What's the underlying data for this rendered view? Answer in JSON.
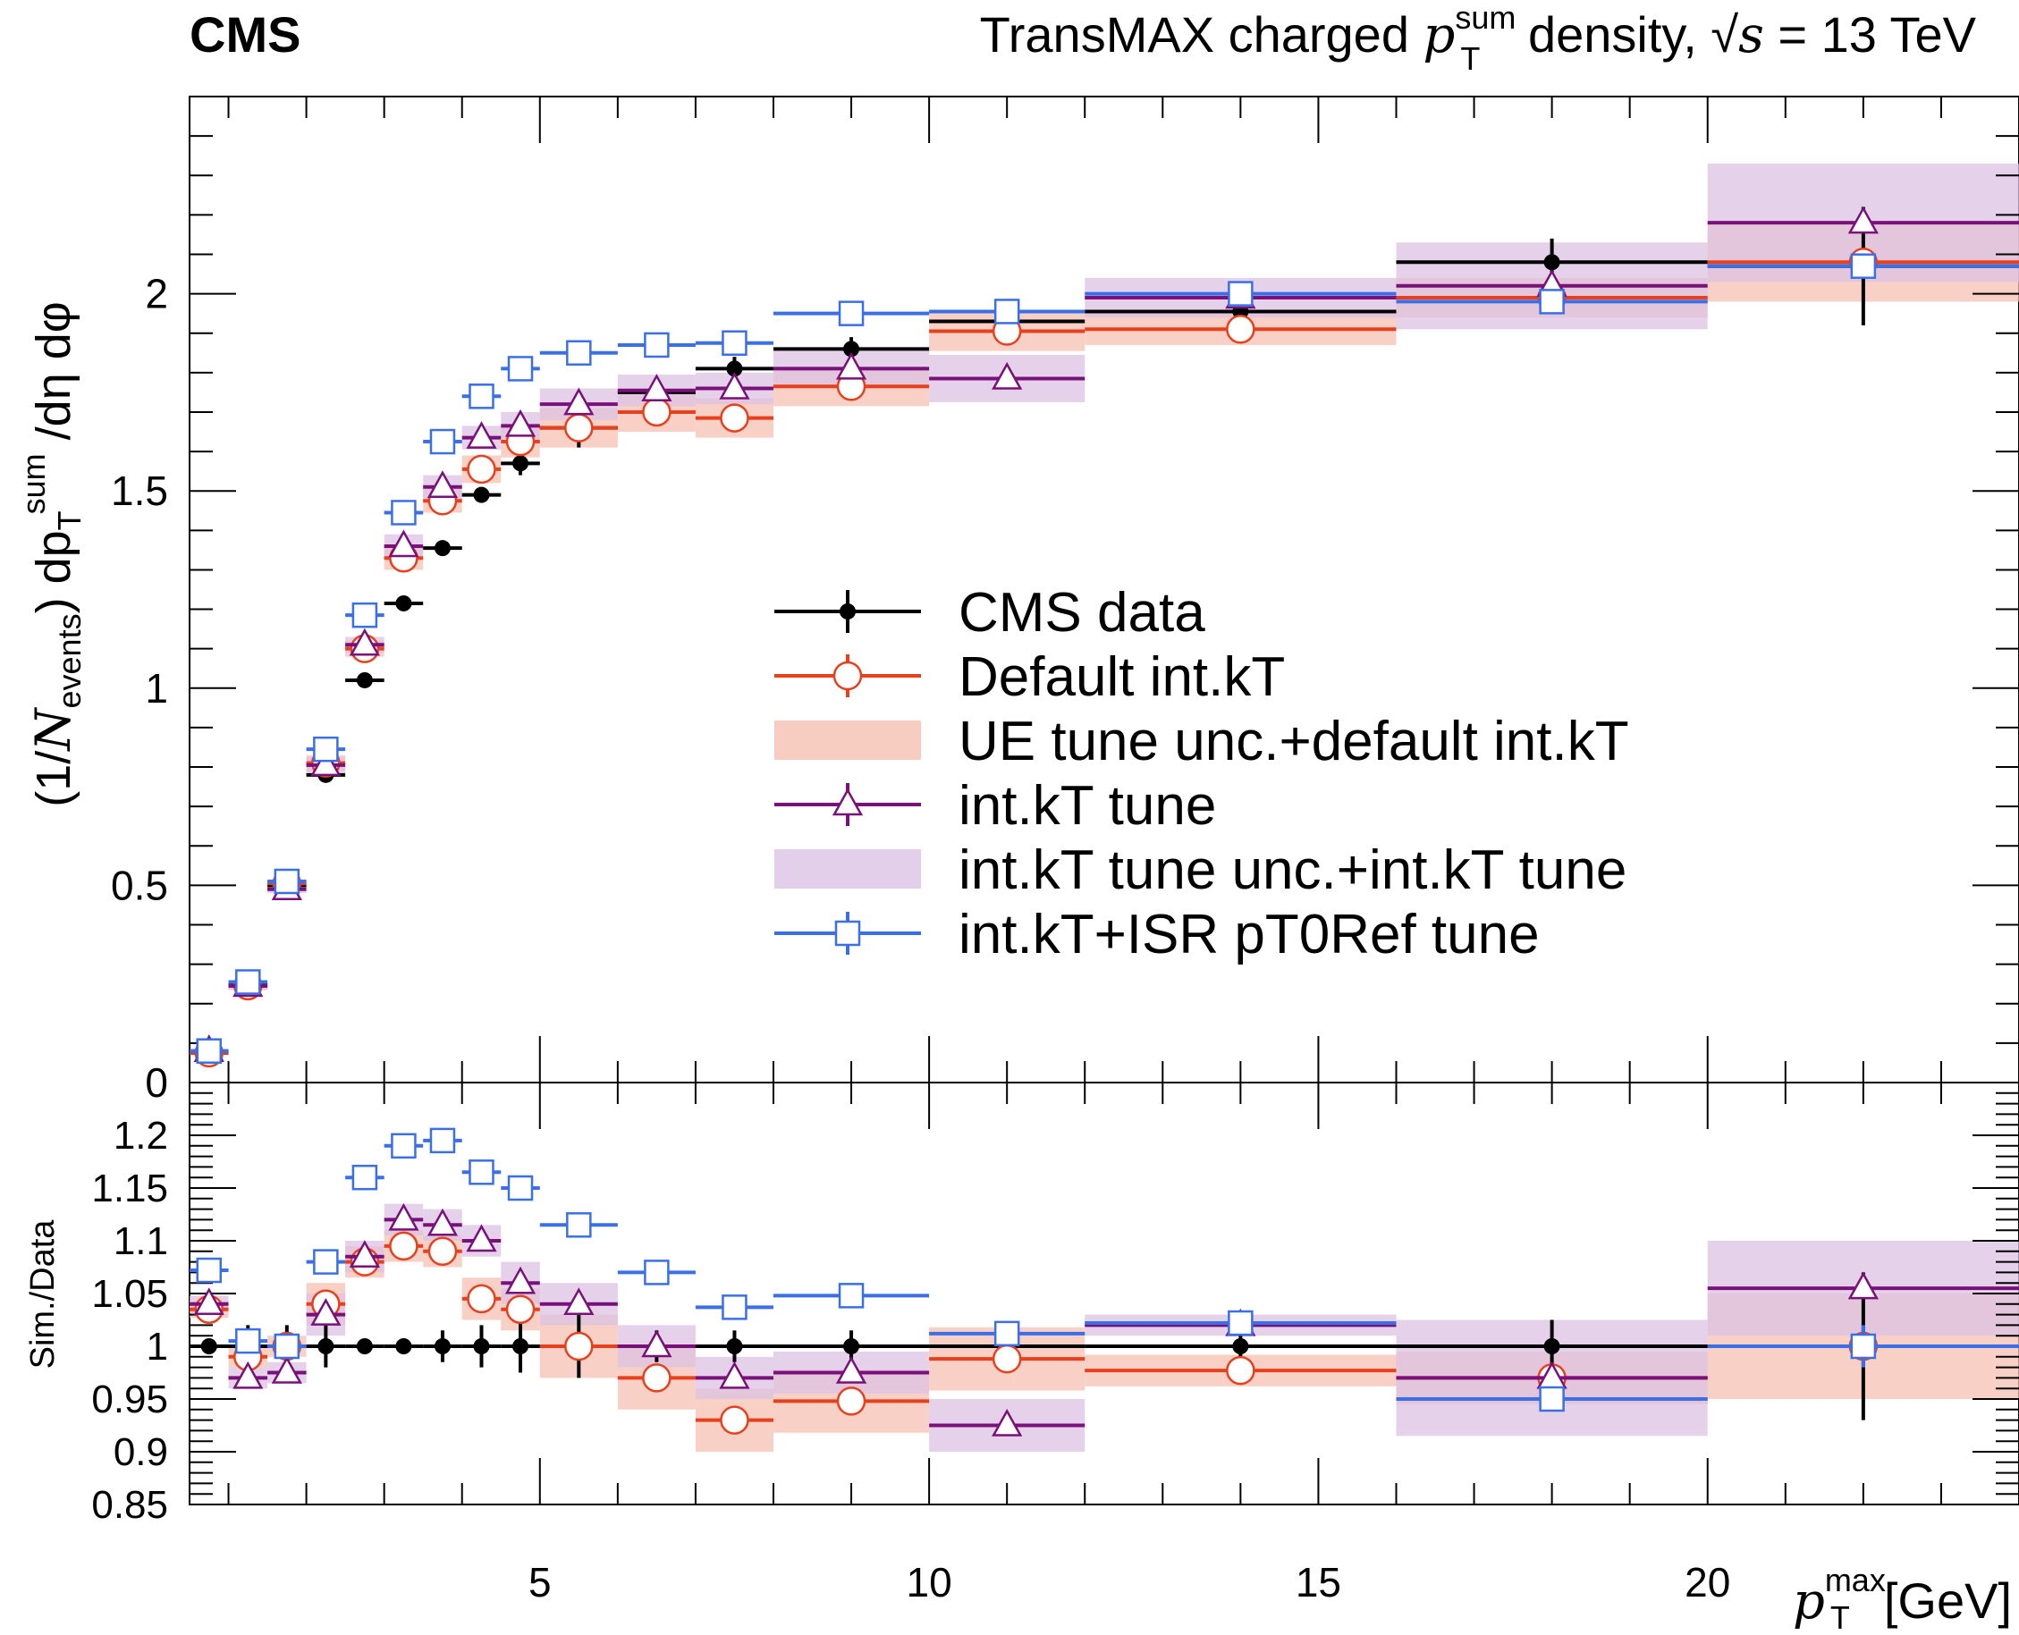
{
  "header": {
    "brand": "CMS",
    "title_main": "TransMAX charged ",
    "title_var": "p",
    "title_sub": "T",
    "title_sup": "sum",
    "title_rest": " density, ",
    "title_sqrt_s": "s",
    "title_energy": " = 13 TeV"
  },
  "axes": {
    "top_ylabel_prefix": "(1/",
    "top_ylabel_N": "N",
    "top_ylabel_events": "events",
    "top_ylabel_mid": ") dp",
    "top_ylabel_T": "T",
    "top_ylabel_sum": "sum",
    "top_ylabel_suffix": " /dη dφ",
    "bottom_ylabel": "Sim./Data",
    "xlabel_var": "p",
    "xlabel_sub": "T",
    "xlabel_sup": "max",
    "xlabel_unit": "[GeV]"
  },
  "colors": {
    "data": "#000000",
    "default": "#e8401c",
    "default_band": "#f5c0b2",
    "kt": "#7a107a",
    "kt_band": "#dcc3e3",
    "isr": "#3a6fe8"
  },
  "legend": {
    "placement": "center-right",
    "entries": [
      {
        "key": "data",
        "label": "CMS data"
      },
      {
        "key": "default",
        "label": "Default int.kT"
      },
      {
        "key": "default_band",
        "label": "UE tune unc.+default int.kT"
      },
      {
        "key": "kt",
        "label": "int.kT tune"
      },
      {
        "key": "kt_band",
        "label": "int.kT tune unc.+int.kT tune"
      },
      {
        "key": "isr",
        "label": "int.kT+ISR pT0Ref tune"
      }
    ]
  },
  "chart_data": [
    {
      "type": "scatter",
      "panel": "main",
      "xlim": [
        0.5,
        24
      ],
      "ylim": [
        0,
        2.5
      ],
      "yticks": [
        "0",
        "0.5",
        "1",
        "1.5",
        "2"
      ],
      "xticks": [
        "5",
        "10",
        "15",
        "20"
      ],
      "bins": [
        [
          0.5,
          1
        ],
        [
          1,
          1.5
        ],
        [
          1.5,
          2
        ],
        [
          2,
          2.5
        ],
        [
          2.5,
          3
        ],
        [
          3,
          3.5
        ],
        [
          3.5,
          4
        ],
        [
          4,
          4.5
        ],
        [
          4.5,
          5
        ],
        [
          5,
          6
        ],
        [
          6,
          7
        ],
        [
          7,
          8
        ],
        [
          8,
          10
        ],
        [
          10,
          12
        ],
        [
          12,
          16
        ],
        [
          16,
          20
        ],
        [
          20,
          24
        ]
      ],
      "series": [
        {
          "key": "data",
          "name": "CMS data",
          "marker": "filled-circle",
          "values": [
            0.075,
            0.25,
            0.5,
            0.78,
            1.02,
            1.215,
            1.355,
            1.49,
            1.57,
            1.66,
            1.75,
            1.81,
            1.86,
            1.93,
            1.955,
            2.08,
            2.07
          ],
          "errors": [
            0.005,
            0.005,
            0.008,
            0.01,
            0.01,
            0.01,
            0.015,
            0.02,
            0.03,
            0.05,
            0.03,
            0.03,
            0.03,
            0.03,
            0.04,
            0.06,
            0.15
          ]
        },
        {
          "key": "default",
          "name": "Default int.kT",
          "marker": "open-circle",
          "values": [
            0.075,
            0.245,
            0.505,
            0.81,
            1.1,
            1.33,
            1.475,
            1.555,
            1.625,
            1.66,
            1.7,
            1.685,
            1.765,
            1.905,
            1.91,
            1.99,
            2.08
          ],
          "band": [
            0.005,
            0.01,
            0.01,
            0.02,
            0.02,
            0.03,
            0.03,
            0.035,
            0.04,
            0.05,
            0.05,
            0.05,
            0.05,
            0.05,
            0.04,
            0.05,
            0.1
          ]
        },
        {
          "key": "kt",
          "name": "int.kT tune",
          "marker": "open-triangle",
          "values": [
            0.08,
            0.245,
            0.49,
            0.805,
            1.11,
            1.36,
            1.51,
            1.635,
            1.665,
            1.72,
            1.755,
            1.76,
            1.81,
            1.785,
            1.99,
            2.02,
            2.18
          ],
          "band": [
            0.005,
            0.01,
            0.01,
            0.02,
            0.02,
            0.03,
            0.03,
            0.03,
            0.035,
            0.04,
            0.04,
            0.04,
            0.05,
            0.06,
            0.05,
            0.11,
            0.15
          ]
        },
        {
          "key": "isr",
          "name": "int.kT+ISR pT0Ref tune",
          "marker": "open-square",
          "values": [
            0.08,
            0.255,
            0.51,
            0.845,
            1.185,
            1.445,
            1.625,
            1.74,
            1.81,
            1.85,
            1.87,
            1.875,
            1.95,
            1.955,
            2.0,
            1.98,
            2.07
          ],
          "errors": [
            0.005,
            0.005,
            0.008,
            0.01,
            0.01,
            0.01,
            0.01,
            0.01,
            0.01,
            0.01,
            0.01,
            0.01,
            0.01,
            0.01,
            0.01,
            0.02,
            0.03
          ]
        }
      ]
    },
    {
      "type": "scatter",
      "panel": "ratio",
      "xlim": [
        0.5,
        24
      ],
      "ylim": [
        0.85,
        1.25
      ],
      "yticks": [
        "0.85",
        "0.9",
        "0.95",
        "1",
        "1.05",
        "1.1",
        "1.15",
        "1.2"
      ],
      "xticks": [
        "5",
        "10",
        "15",
        "20"
      ],
      "bins": [
        [
          0.5,
          1
        ],
        [
          1,
          1.5
        ],
        [
          1.5,
          2
        ],
        [
          2,
          2.5
        ],
        [
          2.5,
          3
        ],
        [
          3,
          3.5
        ],
        [
          3.5,
          4
        ],
        [
          4,
          4.5
        ],
        [
          4.5,
          5
        ],
        [
          5,
          6
        ],
        [
          6,
          7
        ],
        [
          7,
          8
        ],
        [
          8,
          10
        ],
        [
          10,
          12
        ],
        [
          12,
          16
        ],
        [
          16,
          20
        ],
        [
          20,
          24
        ]
      ],
      "series": [
        {
          "key": "data",
          "name": "CMS data",
          "marker": "filled-circle",
          "values": [
            1,
            1,
            1,
            1,
            1,
            1,
            1,
            1,
            1,
            1,
            1,
            1,
            1,
            1,
            1,
            1,
            1
          ],
          "errors": [
            0.003,
            0.02,
            0.02,
            0.02,
            0.005,
            0.005,
            0.015,
            0.02,
            0.025,
            0.03,
            0.015,
            0.015,
            0.015,
            0.015,
            0.02,
            0.025,
            0.07
          ]
        },
        {
          "key": "default",
          "name": "Default int.kT",
          "marker": "open-circle",
          "values": [
            1.035,
            0.99,
            1.0,
            1.04,
            1.08,
            1.095,
            1.09,
            1.045,
            1.035,
            1.0,
            0.97,
            0.93,
            0.948,
            0.988,
            0.977,
            0.97,
            1.0
          ],
          "band": [
            0.008,
            0.01,
            0.01,
            0.02,
            0.015,
            0.015,
            0.015,
            0.02,
            0.02,
            0.03,
            0.03,
            0.03,
            0.03,
            0.03,
            0.015,
            0.025,
            0.05
          ]
        },
        {
          "key": "kt",
          "name": "int.kT tune",
          "marker": "open-triangle",
          "values": [
            1.04,
            0.97,
            0.975,
            1.03,
            1.085,
            1.12,
            1.115,
            1.1,
            1.06,
            1.04,
            1.0,
            0.97,
            0.975,
            0.925,
            1.02,
            0.97,
            1.055
          ],
          "band": [
            0.008,
            0.01,
            0.01,
            0.02,
            0.015,
            0.015,
            0.015,
            0.015,
            0.02,
            0.02,
            0.02,
            0.02,
            0.02,
            0.025,
            0.01,
            0.055,
            0.045
          ]
        },
        {
          "key": "isr",
          "name": "int.kT+ISR pT0Ref tune",
          "marker": "open-square",
          "values": [
            1.072,
            1.005,
            1.0,
            1.08,
            1.16,
            1.19,
            1.195,
            1.165,
            1.15,
            1.115,
            1.07,
            1.037,
            1.048,
            1.012,
            1.022,
            0.95,
            1.0
          ],
          "errors": [
            0.003,
            0.01,
            0.005,
            0.005,
            0.005,
            0.005,
            0.005,
            0.005,
            0.005,
            0.005,
            0.005,
            0.005,
            0.005,
            0.005,
            0.008,
            0.01,
            0.02
          ]
        }
      ]
    }
  ]
}
